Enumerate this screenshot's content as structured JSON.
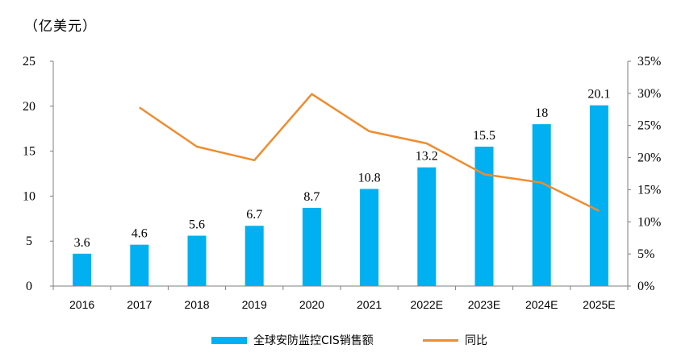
{
  "chart_data": {
    "type": "bar+line",
    "unit_label": "（亿美元）",
    "categories": [
      "2016",
      "2017",
      "2018",
      "2019",
      "2020",
      "2021",
      "2022E",
      "2023E",
      "2024E",
      "2025E"
    ],
    "bar_series": {
      "name": "全球安防监控CIS销售额",
      "values": [
        3.6,
        4.6,
        5.6,
        6.7,
        8.7,
        10.8,
        13.2,
        15.5,
        18,
        20.1
      ],
      "value_labels": [
        "3.6",
        "4.6",
        "5.6",
        "6.7",
        "8.7",
        "10.8",
        "13.2",
        "15.5",
        "18",
        "20.1"
      ],
      "color": "#00B0F0"
    },
    "line_series": {
      "name": "同比",
      "values": [
        null,
        27.8,
        21.7,
        19.6,
        29.9,
        24.1,
        22.2,
        17.4,
        16.1,
        11.7
      ],
      "color": "#F08C2E"
    },
    "y_left": {
      "min": 0,
      "max": 25,
      "ticks": [
        "0",
        "5",
        "10",
        "15",
        "20",
        "25"
      ]
    },
    "y_right": {
      "min": 0,
      "max": 35,
      "ticks": [
        "0%",
        "5%",
        "10%",
        "15%",
        "20%",
        "25%",
        "30%",
        "35%"
      ]
    },
    "legend_position": "bottom",
    "grid": false
  }
}
